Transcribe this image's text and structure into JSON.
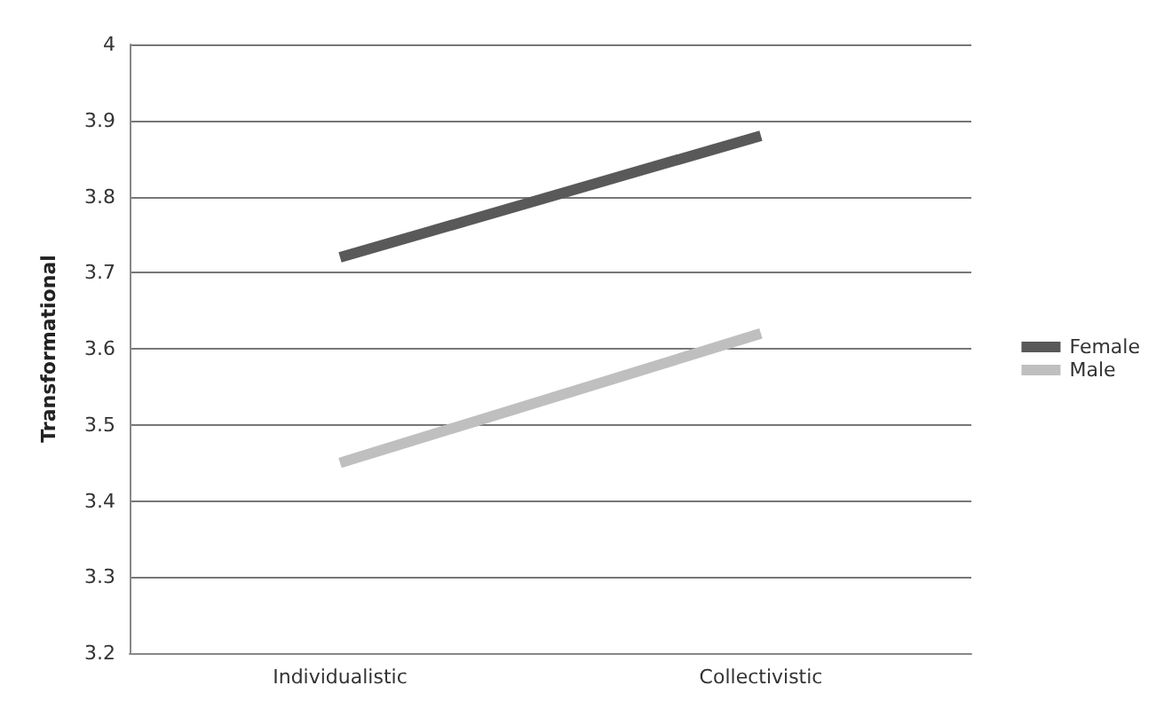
{
  "chart_data": {
    "type": "line",
    "ylabel": "Transformational",
    "categories": [
      "Individualistic",
      "Collectivistic"
    ],
    "series": [
      {
        "name": "Female",
        "color": "#595959",
        "values": [
          3.72,
          3.88
        ]
      },
      {
        "name": "Male",
        "color": "#bfbfbf",
        "values": [
          3.45,
          3.62
        ]
      }
    ],
    "ylim": [
      3.2,
      4
    ],
    "yticks": [
      {
        "value": 3.2,
        "label": "3.2"
      },
      {
        "value": 3.3,
        "label": "3.3"
      },
      {
        "value": 3.4,
        "label": "3.4"
      },
      {
        "value": 3.5,
        "label": "3.5"
      },
      {
        "value": 3.6,
        "label": "3.6"
      },
      {
        "value": 3.7,
        "label": "3.7"
      },
      {
        "value": 3.8,
        "label": "3.8"
      },
      {
        "value": 3.9,
        "label": "3.9"
      },
      {
        "value": 4,
        "label": "4"
      }
    ],
    "grid": "y",
    "legend": "right",
    "marker": "none",
    "line_style": "solid"
  }
}
